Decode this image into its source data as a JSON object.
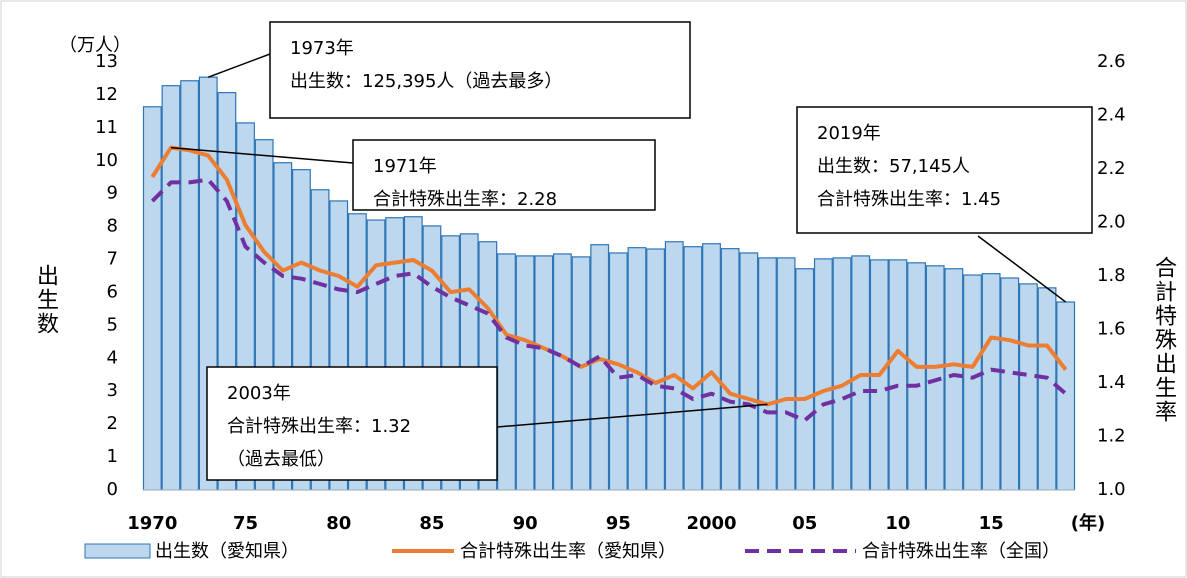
{
  "chart_data": {
    "type": "bar",
    "y_label_unit": "（万人）",
    "y_label": "出生数",
    "y2_label": "合計特殊出生率",
    "x_label": "(年)",
    "categories": [
      "1970",
      null,
      null,
      null,
      null,
      "75",
      null,
      null,
      null,
      null,
      "80",
      null,
      null,
      null,
      null,
      "85",
      null,
      null,
      null,
      null,
      "90",
      null,
      null,
      null,
      null,
      "95",
      null,
      null,
      null,
      null,
      "2000",
      null,
      null,
      null,
      null,
      "05",
      null,
      null,
      null,
      null,
      "10",
      null,
      null,
      null,
      null,
      "15",
      null,
      null,
      null,
      null
    ],
    "series": [
      {
        "name": "出生数（愛知県）",
        "type": "bar",
        "color": "#bdd7ee",
        "edge_color": "#2e75b6",
        "values": [
          11.64,
          12.28,
          12.43,
          12.54,
          12.07,
          11.15,
          10.64,
          9.94,
          9.73,
          9.12,
          8.78,
          8.39,
          8.2,
          8.27,
          8.3,
          8.02,
          7.72,
          7.78,
          7.54,
          7.17,
          7.11,
          7.11,
          7.17,
          7.08,
          7.45,
          7.2,
          7.36,
          7.32,
          7.54,
          7.39,
          7.48,
          7.33,
          7.2,
          7.05,
          7.05,
          6.72,
          7.02,
          7.05,
          7.11,
          6.99,
          6.99,
          6.9,
          6.81,
          6.72,
          6.53,
          6.57,
          6.44,
          6.26,
          6.14,
          5.71
        ]
      },
      {
        "name": "合計特殊出生率（愛知県）",
        "type": "line",
        "axis": "y2",
        "color": "#ed7d31",
        "dashed": false,
        "values": [
          2.17,
          2.28,
          2.27,
          2.25,
          2.16,
          1.99,
          1.89,
          1.82,
          1.85,
          1.82,
          1.8,
          1.76,
          1.84,
          1.85,
          1.86,
          1.82,
          1.74,
          1.75,
          1.68,
          1.58,
          1.56,
          1.53,
          1.5,
          1.46,
          1.49,
          1.47,
          1.44,
          1.4,
          1.43,
          1.38,
          1.44,
          1.36,
          1.34,
          1.32,
          1.34,
          1.34,
          1.37,
          1.39,
          1.43,
          1.43,
          1.52,
          1.46,
          1.46,
          1.47,
          1.46,
          1.57,
          1.56,
          1.54,
          1.54,
          1.45
        ]
      },
      {
        "name": "合計特殊出生率（全国）",
        "type": "line",
        "axis": "y2",
        "color": "#7030a0",
        "dashed": true,
        "values": [
          2.08,
          2.15,
          2.15,
          2.16,
          2.08,
          1.91,
          1.85,
          1.8,
          1.79,
          1.77,
          1.75,
          1.74,
          1.77,
          1.8,
          1.81,
          1.76,
          1.72,
          1.69,
          1.66,
          1.57,
          1.54,
          1.53,
          1.5,
          1.46,
          1.5,
          1.42,
          1.43,
          1.39,
          1.38,
          1.34,
          1.36,
          1.33,
          1.32,
          1.29,
          1.29,
          1.26,
          1.32,
          1.34,
          1.37,
          1.37,
          1.39,
          1.39,
          1.41,
          1.43,
          1.42,
          1.45,
          1.44,
          1.43,
          1.42,
          1.36
        ]
      }
    ],
    "ylim": [
      0,
      13
    ],
    "yticks": [
      0,
      1,
      2,
      3,
      4,
      5,
      6,
      7,
      8,
      9,
      10,
      11,
      12,
      13
    ],
    "y2lim": [
      1,
      2.6
    ],
    "y2ticks": [
      {
        "value": 1,
        "label": "1.0"
      },
      1.2,
      1.4,
      1.6,
      1.8,
      {
        "value": 2,
        "label": "2.0"
      },
      2.2,
      2.4,
      2.6
    ],
    "legend": "bottom",
    "annotations": [
      {
        "lines": [
          "1973年",
          "出生数：125,395人（過去最多）"
        ]
      },
      {
        "lines": [
          "1971年",
          "合計特殊出生率：2.28"
        ]
      },
      {
        "lines": [
          "2019年",
          "出生数：57,145人",
          "合計特殊出生率：1.45"
        ]
      },
      {
        "lines": [
          "2003年",
          "合計特殊出生率：1.32",
          "（過去最低）"
        ]
      }
    ]
  }
}
